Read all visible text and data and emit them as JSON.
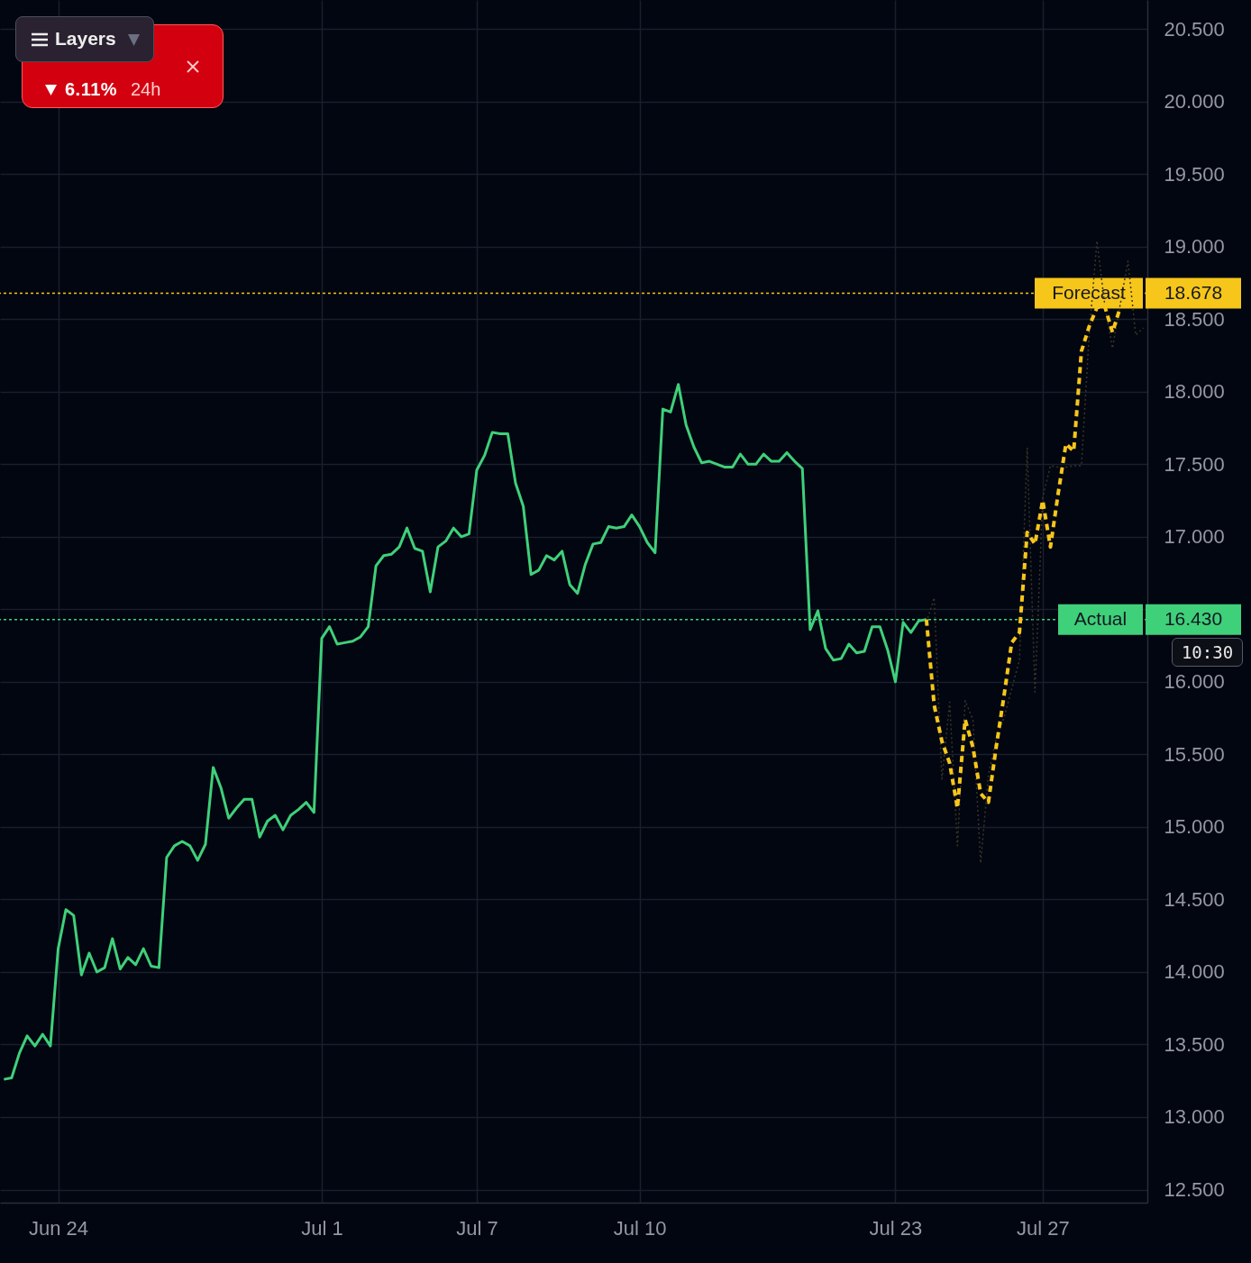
{
  "chart_data": {
    "type": "line",
    "categories": [
      null,
      null,
      null,
      null,
      null,
      null,
      null,
      "Jun 24",
      null,
      null,
      null,
      null,
      null,
      null,
      null,
      null,
      null,
      null,
      null,
      null,
      null,
      null,
      null,
      null,
      null,
      null,
      null,
      null,
      null,
      null,
      null,
      null,
      null,
      null,
      null,
      null,
      null,
      null,
      null,
      null,
      null,
      "Jul 1",
      null,
      null,
      null,
      null,
      null,
      null,
      null,
      null,
      null,
      null,
      null,
      null,
      null,
      null,
      null,
      null,
      null,
      null,
      null,
      "Jul 7",
      null,
      null,
      null,
      null,
      null,
      null,
      null,
      null,
      null,
      null,
      null,
      null,
      null,
      null,
      null,
      null,
      null,
      null,
      null,
      null,
      "Jul 10",
      null,
      null,
      null,
      null,
      null,
      null,
      null,
      null,
      null,
      null,
      null,
      null,
      null,
      null,
      null,
      null,
      null,
      null,
      null,
      null,
      null,
      null,
      null,
      null,
      null,
      null,
      null,
      null,
      null,
      null,
      null,
      null,
      "Jul 23",
      null,
      null,
      null,
      null,
      null,
      null,
      null,
      null,
      null,
      null,
      null,
      null,
      null,
      null,
      null,
      null,
      null,
      null,
      "Jul 27",
      null,
      null,
      null,
      null,
      null,
      null,
      null,
      null,
      null,
      null,
      null,
      null,
      null
    ],
    "ylim": [
      12.41,
      20.7
    ],
    "yticks": [
      {
        "value": 12.5,
        "label": "12.500"
      },
      {
        "value": 13,
        "label": "13.000"
      },
      {
        "value": 13.5,
        "label": "13.500"
      },
      {
        "value": 14,
        "label": "14.000"
      },
      {
        "value": 14.5,
        "label": "14.500"
      },
      {
        "value": 15,
        "label": "15.000"
      },
      {
        "value": 15.5,
        "label": "15.500"
      },
      {
        "value": 16,
        "label": "16.000"
      },
      {
        "value": 16.5,
        "label": null
      },
      {
        "value": 17,
        "label": "17.000"
      },
      {
        "value": 17.5,
        "label": "17.500"
      },
      {
        "value": 18,
        "label": "18.000"
      },
      {
        "value": 18.5,
        "label": "18.500"
      },
      {
        "value": 19,
        "label": "19.000"
      },
      {
        "value": 19.5,
        "label": "19.500"
      },
      {
        "value": 20,
        "label": "20.000"
      },
      {
        "value": 20.5,
        "label": "20.500"
      }
    ],
    "grid": true,
    "series": [
      {
        "color": "#3a3626",
        "line_style": "dotted",
        "values": [
          null,
          null,
          null,
          null,
          null,
          null,
          null,
          null,
          null,
          null,
          null,
          null,
          null,
          null,
          null,
          null,
          null,
          null,
          null,
          null,
          null,
          null,
          null,
          null,
          null,
          null,
          null,
          null,
          null,
          null,
          null,
          null,
          null,
          null,
          null,
          null,
          null,
          null,
          null,
          null,
          null,
          null,
          null,
          null,
          null,
          null,
          null,
          null,
          null,
          null,
          null,
          null,
          null,
          null,
          null,
          null,
          null,
          null,
          null,
          null,
          null,
          null,
          null,
          null,
          null,
          null,
          null,
          null,
          null,
          null,
          null,
          null,
          null,
          null,
          null,
          null,
          null,
          null,
          null,
          null,
          null,
          null,
          null,
          null,
          null,
          null,
          null,
          null,
          null,
          null,
          null,
          null,
          null,
          null,
          null,
          null,
          null,
          null,
          null,
          null,
          null,
          null,
          null,
          null,
          null,
          null,
          null,
          null,
          null,
          null,
          null,
          null,
          null,
          null,
          null,
          null,
          null,
          null,
          null,
          16.41,
          16.58,
          15.33,
          15.86,
          14.87,
          15.87,
          15.74,
          14.75,
          15.36,
          15.61,
          15.75,
          15.95,
          16.15,
          17.61,
          15.93,
          17.27,
          17.49,
          17.48,
          17.48,
          17.49,
          17.49,
          18.4,
          19.04,
          18.6,
          18.3,
          18.6,
          18.9,
          18.39,
          18.44
        ]
      },
      {
        "color": "#3fd07a",
        "line_style": "solid",
        "values": [
          13.26,
          13.27,
          13.44,
          13.56,
          13.49,
          13.57,
          13.49,
          14.16,
          14.43,
          14.39,
          13.98,
          14.13,
          14.0,
          14.03,
          14.23,
          14.02,
          14.1,
          14.05,
          14.16,
          14.04,
          14.03,
          14.79,
          14.87,
          14.9,
          14.87,
          14.77,
          14.88,
          15.41,
          15.27,
          15.06,
          15.13,
          15.19,
          15.19,
          14.93,
          15.04,
          15.08,
          14.98,
          15.08,
          15.12,
          15.17,
          15.1,
          16.3,
          16.38,
          16.26,
          16.27,
          16.28,
          16.31,
          16.38,
          16.8,
          16.87,
          16.88,
          16.93,
          17.06,
          16.92,
          16.9,
          16.62,
          16.93,
          16.97,
          17.06,
          17.0,
          17.02,
          17.46,
          17.56,
          17.72,
          17.71,
          17.71,
          17.37,
          17.21,
          16.74,
          16.77,
          16.87,
          16.84,
          16.9,
          16.67,
          16.61,
          16.81,
          16.95,
          16.96,
          17.07,
          17.06,
          17.07,
          17.15,
          17.07,
          16.96,
          16.89,
          17.88,
          17.86,
          18.05,
          17.77,
          17.62,
          17.51,
          17.52,
          17.5,
          17.48,
          17.48,
          17.57,
          17.5,
          17.5,
          17.57,
          17.52,
          17.52,
          17.58,
          17.52,
          17.47,
          16.36,
          16.49,
          16.23,
          16.15,
          16.16,
          16.26,
          16.2,
          16.21,
          16.38,
          16.38,
          16.22,
          16.0,
          16.41,
          16.34,
          16.42,
          16.43,
          null,
          null,
          null,
          null,
          null,
          null,
          null,
          null,
          null,
          null,
          null,
          null,
          null,
          null,
          null,
          null,
          null,
          null,
          null,
          null,
          null,
          null,
          null,
          null,
          null,
          null,
          null,
          null
        ]
      },
      {
        "color": "#f7c61a",
        "line_style": "dashed",
        "values": [
          null,
          null,
          null,
          null,
          null,
          null,
          null,
          null,
          null,
          null,
          null,
          null,
          null,
          null,
          null,
          null,
          null,
          null,
          null,
          null,
          null,
          null,
          null,
          null,
          null,
          null,
          null,
          null,
          null,
          null,
          null,
          null,
          null,
          null,
          null,
          null,
          null,
          null,
          null,
          null,
          null,
          null,
          null,
          null,
          null,
          null,
          null,
          null,
          null,
          null,
          null,
          null,
          null,
          null,
          null,
          null,
          null,
          null,
          null,
          null,
          null,
          null,
          null,
          null,
          null,
          null,
          null,
          null,
          null,
          null,
          null,
          null,
          null,
          null,
          null,
          null,
          null,
          null,
          null,
          null,
          null,
          null,
          null,
          null,
          null,
          null,
          null,
          null,
          null,
          null,
          null,
          null,
          null,
          null,
          null,
          null,
          null,
          null,
          null,
          null,
          null,
          null,
          null,
          null,
          null,
          null,
          null,
          null,
          null,
          null,
          null,
          null,
          null,
          null,
          null,
          null,
          null,
          null,
          null,
          16.43,
          15.84,
          15.59,
          15.44,
          15.13,
          15.74,
          15.55,
          15.23,
          15.17,
          15.55,
          15.9,
          16.27,
          16.34,
          17.03,
          16.95,
          17.25,
          16.93,
          17.3,
          17.64,
          17.59,
          18.28,
          18.45,
          18.58,
          18.59,
          18.41,
          18.58,
          null,
          null,
          null
        ]
      }
    ],
    "ref_lines": [
      {
        "axis": "y",
        "value": 18.678,
        "label": "Forecast",
        "color": "#f7c61a",
        "line_style": "dotted"
      },
      {
        "axis": "y",
        "value": 16.43,
        "label": "Actual",
        "color": "#3fd07a",
        "line_style": "dotted"
      }
    ],
    "annotations": [
      "Layers",
      "6.11%",
      "24h",
      "10:30",
      "18.678",
      "16.430"
    ]
  }
}
